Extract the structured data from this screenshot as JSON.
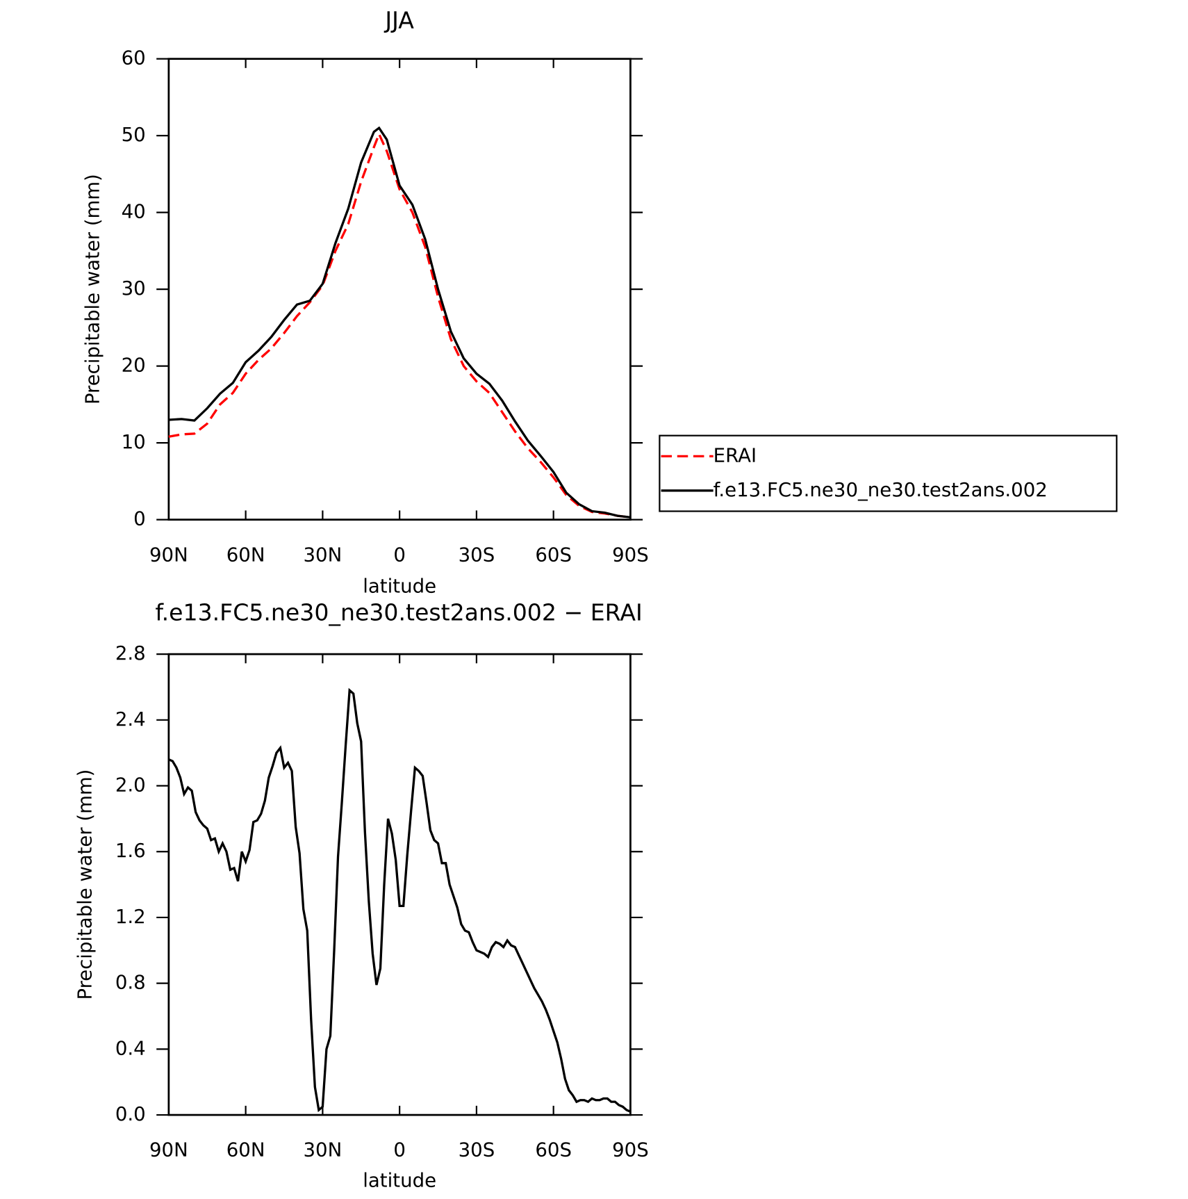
{
  "chart_data": [
    {
      "type": "line",
      "title": "JJA",
      "x_label": "latitude",
      "y_label": "Precipitable water (mm)",
      "x": [
        90,
        85,
        80,
        75,
        70,
        65,
        60,
        55,
        50,
        45,
        40,
        35,
        30,
        25,
        20,
        15,
        10,
        8,
        5,
        0,
        -5,
        -10,
        -15,
        -20,
        -25,
        -30,
        -35,
        -40,
        -45,
        -50,
        -55,
        -60,
        -65,
        -70,
        -75,
        -80,
        -85,
        -90
      ],
      "series": [
        {
          "name": "ERAI",
          "color": "#ff0000",
          "dash": true,
          "values": [
            10.8,
            11.1,
            11.2,
            12.5,
            15.0,
            16.5,
            19.0,
            20.8,
            22.3,
            24.3,
            26.5,
            28.3,
            30.5,
            35.0,
            38.5,
            44.0,
            48.5,
            50.2,
            48.0,
            43.0,
            40.0,
            35.5,
            29.0,
            23.5,
            20.0,
            18.0,
            16.5,
            14.0,
            11.5,
            9.3,
            7.5,
            5.5,
            3.2,
            1.8,
            1.0,
            0.8,
            0.5,
            0.3
          ]
        },
        {
          "name": "f.e13.FC5.ne30_ne30.test2ans.002",
          "color": "#000000",
          "dash": false,
          "values": [
            13.0,
            13.1,
            12.9,
            14.5,
            16.4,
            17.8,
            20.5,
            22.0,
            23.8,
            26.0,
            28.0,
            28.5,
            30.7,
            36.0,
            40.5,
            46.5,
            50.5,
            51.0,
            49.5,
            43.5,
            41.0,
            36.5,
            30.0,
            24.5,
            21.0,
            19.0,
            17.7,
            15.5,
            12.8,
            10.3,
            8.3,
            6.2,
            3.5,
            2.0,
            1.1,
            0.9,
            0.5,
            0.3
          ]
        }
      ],
      "xlim": [
        90,
        -90
      ],
      "xticks": [
        {
          "value": 90,
          "label": "90N"
        },
        {
          "value": 60,
          "label": "60N"
        },
        {
          "value": 30,
          "label": "30N"
        },
        0,
        {
          "value": -30,
          "label": "30S"
        },
        {
          "value": -60,
          "label": "60S"
        },
        {
          "value": -90,
          "label": "90S"
        }
      ],
      "ylim": [
        0,
        60
      ],
      "yticks": [
        0,
        10,
        20,
        30,
        40,
        50,
        60
      ],
      "grid": false,
      "legend": "right"
    },
    {
      "type": "line",
      "title": "f.e13.FC5.ne30_ne30.test2ans.002 − ERAI",
      "x_label": "latitude",
      "y_label": "Precipitable water (mm)",
      "x": [
        90,
        88.5,
        87,
        85.5,
        84,
        82.5,
        81,
        79.5,
        78,
        76.5,
        75,
        73.5,
        72,
        70.5,
        69,
        67.5,
        66,
        64.5,
        63,
        61.5,
        60,
        58.5,
        57,
        55.5,
        54,
        52.5,
        51,
        49.5,
        48,
        46.5,
        45,
        43.5,
        42,
        40.5,
        39,
        37.5,
        36,
        34.5,
        33,
        31.5,
        30,
        28.5,
        27,
        25.5,
        24,
        22.5,
        21,
        19.5,
        18,
        16.5,
        15,
        13.5,
        12,
        10.5,
        9,
        7.5,
        6,
        4.5,
        3,
        1.5,
        0,
        -1.5,
        -3,
        -4.5,
        -6,
        -7.5,
        -9,
        -10.5,
        -12,
        -13.5,
        -15,
        -16.5,
        -18,
        -19.5,
        -21,
        -22.5,
        -24,
        -25.5,
        -27,
        -28.5,
        -30,
        -31.5,
        -33,
        -34.5,
        -36,
        -37.5,
        -39,
        -40.5,
        -42,
        -43.5,
        -45,
        -46.5,
        -48,
        -49.5,
        -51,
        -52.5,
        -54,
        -55.5,
        -57,
        -58.5,
        -60,
        -61.5,
        -63,
        -64.5,
        -66,
        -67.5,
        -69,
        -70.5,
        -72,
        -73.5,
        -75,
        -76.5,
        -78,
        -79.5,
        -81,
        -82.5,
        -84,
        -85.5,
        -87,
        -88.5,
        -90
      ],
      "series": [
        {
          "name": "f.e13.FC5.ne30_ne30.test2ans.002 − ERAI",
          "color": "#000000",
          "dash": false,
          "values": [
            2.16,
            2.15,
            2.11,
            2.05,
            1.95,
            1.99,
            1.97,
            1.84,
            1.79,
            1.76,
            1.74,
            1.67,
            1.68,
            1.6,
            1.65,
            1.6,
            1.49,
            1.5,
            1.42,
            1.6,
            1.54,
            1.61,
            1.78,
            1.79,
            1.83,
            1.91,
            2.05,
            2.12,
            2.2,
            2.23,
            2.11,
            2.14,
            2.09,
            1.75,
            1.59,
            1.25,
            1.12,
            0.58,
            0.17,
            0.03,
            0.05,
            0.4,
            0.48,
            1.0,
            1.57,
            1.9,
            2.25,
            2.58,
            2.56,
            2.38,
            2.27,
            1.72,
            1.3,
            0.98,
            0.79,
            0.89,
            1.4,
            1.8,
            1.71,
            1.55,
            1.27,
            1.27,
            1.58,
            1.85,
            2.11,
            2.09,
            2.06,
            1.9,
            1.73,
            1.67,
            1.65,
            1.53,
            1.53,
            1.4,
            1.33,
            1.26,
            1.16,
            1.12,
            1.11,
            1.05,
            1.0,
            0.99,
            0.98,
            0.96,
            1.02,
            1.05,
            1.04,
            1.02,
            1.06,
            1.03,
            1.02,
            0.97,
            0.92,
            0.87,
            0.82,
            0.77,
            0.73,
            0.69,
            0.64,
            0.58,
            0.51,
            0.44,
            0.34,
            0.22,
            0.15,
            0.12,
            0.08,
            0.09,
            0.09,
            0.08,
            0.1,
            0.09,
            0.09,
            0.1,
            0.1,
            0.08,
            0.08,
            0.06,
            0.05,
            0.03,
            0.02
          ]
        }
      ],
      "xlim": [
        90,
        -90
      ],
      "xticks": [
        {
          "value": 90,
          "label": "90N"
        },
        {
          "value": 60,
          "label": "60N"
        },
        {
          "value": 30,
          "label": "30N"
        },
        0,
        {
          "value": -30,
          "label": "30S"
        },
        {
          "value": -60,
          "label": "60S"
        },
        {
          "value": -90,
          "label": "90S"
        }
      ],
      "ylim": [
        0,
        2.8
      ],
      "yticks": [
        {
          "value": 0,
          "label": "0.0"
        },
        0.4,
        0.8,
        1.2,
        1.6,
        {
          "value": 2,
          "label": "2.0"
        },
        2.4,
        2.8
      ],
      "grid": false
    }
  ]
}
